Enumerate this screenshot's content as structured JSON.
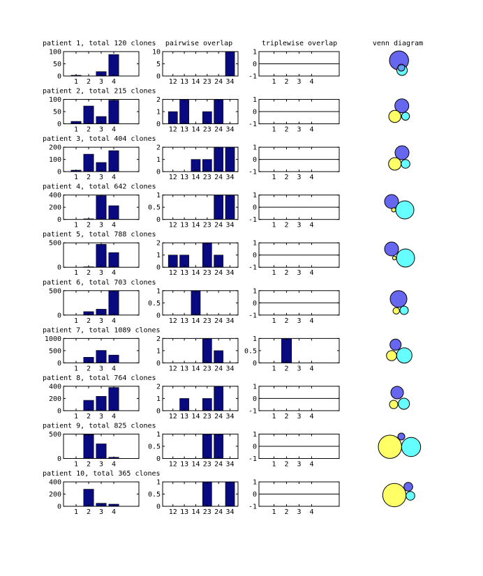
{
  "colors": {
    "bar": "#0a0a80",
    "set_a": "#6666ee",
    "set_b": "#ffff66",
    "set_c": "#66ffff"
  },
  "column_titles": {
    "pairwise": "pairwise overlap",
    "triplewise": "triplewise overlap",
    "venn": "venn diagram"
  },
  "chart_data": {
    "type": "bar",
    "counts_categories": [
      "1",
      "2",
      "3",
      "4"
    ],
    "pairwise_categories": [
      "12",
      "13",
      "14",
      "23",
      "24",
      "34"
    ],
    "triplewise_categories": [
      "1",
      "2",
      "3",
      "4"
    ],
    "patients": [
      {
        "title": "patient 1, total 120 clones",
        "counts": [
          3,
          0,
          18,
          88
        ],
        "counts_ylim": [
          0,
          100
        ],
        "counts_yticks": [
          "0",
          "50",
          "100"
        ],
        "pairwise": [
          0,
          0,
          0,
          0,
          0,
          10
        ],
        "pairwise_ylim": [
          0,
          10
        ],
        "pairwise_yticks": [
          "0",
          "5",
          "10"
        ],
        "triplewise": [
          0,
          0,
          0,
          0
        ],
        "triplewise_ylim": [
          -1,
          1
        ],
        "triplewise_yticks": [
          "-1",
          "0",
          "1"
        ]
      },
      {
        "title": "patient 2, total 215 clones",
        "counts": [
          10,
          73,
          30,
          97
        ],
        "counts_ylim": [
          0,
          100
        ],
        "counts_yticks": [
          "0",
          "50",
          "100"
        ],
        "pairwise": [
          1,
          2,
          0,
          1,
          2,
          0
        ],
        "pairwise_ylim": [
          0,
          2
        ],
        "pairwise_yticks": [
          "0",
          "1",
          "2"
        ],
        "triplewise": [
          0,
          0,
          0,
          0
        ],
        "triplewise_ylim": [
          -1,
          1
        ],
        "triplewise_yticks": [
          "-1",
          "0",
          "1"
        ]
      },
      {
        "title": "patient 3, total 404 clones",
        "counts": [
          12,
          143,
          75,
          172
        ],
        "counts_ylim": [
          0,
          200
        ],
        "counts_yticks": [
          "0",
          "100",
          "200"
        ],
        "pairwise": [
          0,
          0,
          1,
          1,
          2,
          2
        ],
        "pairwise_ylim": [
          0,
          2
        ],
        "pairwise_yticks": [
          "0",
          "1",
          "2"
        ],
        "triplewise": [
          0,
          0,
          0,
          0
        ],
        "triplewise_ylim": [
          -1,
          1
        ],
        "triplewise_yticks": [
          "-1",
          "0",
          "1"
        ]
      },
      {
        "title": "patient 4, total 642 clones",
        "counts": [
          0,
          10,
          390,
          225
        ],
        "counts_ylim": [
          0,
          400
        ],
        "counts_yticks": [
          "0",
          "200",
          "400"
        ],
        "pairwise": [
          0,
          0,
          0,
          0,
          1,
          1
        ],
        "pairwise_ylim": [
          0,
          1
        ],
        "pairwise_yticks": [
          "0",
          "0.5",
          "1"
        ],
        "triplewise": [
          0,
          0,
          0,
          0
        ],
        "triplewise_ylim": [
          -1,
          1
        ],
        "triplewise_yticks": [
          "-1",
          "0",
          "1"
        ]
      },
      {
        "title": "patient 5, total 788 clones",
        "counts": [
          0,
          10,
          470,
          300
        ],
        "counts_ylim": [
          0,
          500
        ],
        "counts_yticks": [
          "0",
          "500"
        ],
        "pairwise": [
          1,
          1,
          0,
          2,
          1,
          0
        ],
        "pairwise_ylim": [
          0,
          2
        ],
        "pairwise_yticks": [
          "0",
          "1",
          "2"
        ],
        "triplewise": [
          0,
          0,
          0,
          0
        ],
        "triplewise_ylim": [
          -1,
          1
        ],
        "triplewise_yticks": [
          "-1",
          "0",
          "1"
        ]
      },
      {
        "title": "patient 6, total 703 clones",
        "counts": [
          0,
          70,
          120,
          510
        ],
        "counts_ylim": [
          0,
          500
        ],
        "counts_yticks": [
          "0",
          "500"
        ],
        "pairwise": [
          0,
          0,
          1,
          0,
          0,
          0
        ],
        "pairwise_ylim": [
          0,
          1
        ],
        "pairwise_yticks": [
          "0",
          "0.5",
          "1"
        ],
        "triplewise": [
          0,
          0,
          0,
          0
        ],
        "triplewise_ylim": [
          -1,
          1
        ],
        "triplewise_yticks": [
          "-1",
          "0",
          "1"
        ]
      },
      {
        "title": "patient 7, total 1089 clones",
        "counts": [
          0,
          230,
          510,
          320
        ],
        "counts_ylim": [
          0,
          1000
        ],
        "counts_yticks": [
          "0",
          "500",
          "1000"
        ],
        "pairwise": [
          0,
          0,
          0,
          2,
          1,
          0
        ],
        "pairwise_ylim": [
          0,
          2
        ],
        "pairwise_yticks": [
          "0",
          "1",
          "2"
        ],
        "triplewise": [
          0,
          1,
          0,
          0
        ],
        "triplewise_ylim": [
          0,
          1
        ],
        "triplewise_yticks": [
          "0",
          "0.5",
          "1"
        ]
      },
      {
        "title": "patient 8, total 764 clones",
        "counts": [
          0,
          170,
          235,
          380
        ],
        "counts_ylim": [
          0,
          400
        ],
        "counts_yticks": [
          "0",
          "200",
          "400"
        ],
        "pairwise": [
          0,
          1,
          0,
          1,
          2,
          0
        ],
        "pairwise_ylim": [
          0,
          2
        ],
        "pairwise_yticks": [
          "0",
          "1",
          "2"
        ],
        "triplewise": [
          0,
          0,
          0,
          0
        ],
        "triplewise_ylim": [
          -1,
          1
        ],
        "triplewise_yticks": [
          "-1",
          "0",
          "1"
        ]
      },
      {
        "title": "patient 9, total 825 clones",
        "counts": [
          0,
          490,
          300,
          25
        ],
        "counts_ylim": [
          0,
          500
        ],
        "counts_yticks": [
          "0",
          "500"
        ],
        "pairwise": [
          0,
          0,
          0,
          1,
          1,
          0
        ],
        "pairwise_ylim": [
          0,
          1
        ],
        "pairwise_yticks": [
          "0",
          "0.5",
          "1"
        ],
        "triplewise": [
          0,
          0,
          0,
          0
        ],
        "triplewise_ylim": [
          -1,
          1
        ],
        "triplewise_yticks": [
          "-1",
          "0",
          "1"
        ]
      },
      {
        "title": "patient 10, total 365 clones",
        "counts": [
          0,
          280,
          50,
          35
        ],
        "counts_ylim": [
          0,
          400
        ],
        "counts_yticks": [
          "0",
          "200",
          "400"
        ],
        "pairwise": [
          0,
          0,
          0,
          1,
          0,
          1
        ],
        "pairwise_ylim": [
          0,
          1
        ],
        "pairwise_yticks": [
          "0",
          "0.5",
          "1"
        ],
        "triplewise": [
          0,
          0,
          0,
          0
        ],
        "triplewise_ylim": [
          -1,
          1
        ],
        "triplewise_yticks": [
          "-1",
          "0",
          "1"
        ]
      }
    ]
  }
}
